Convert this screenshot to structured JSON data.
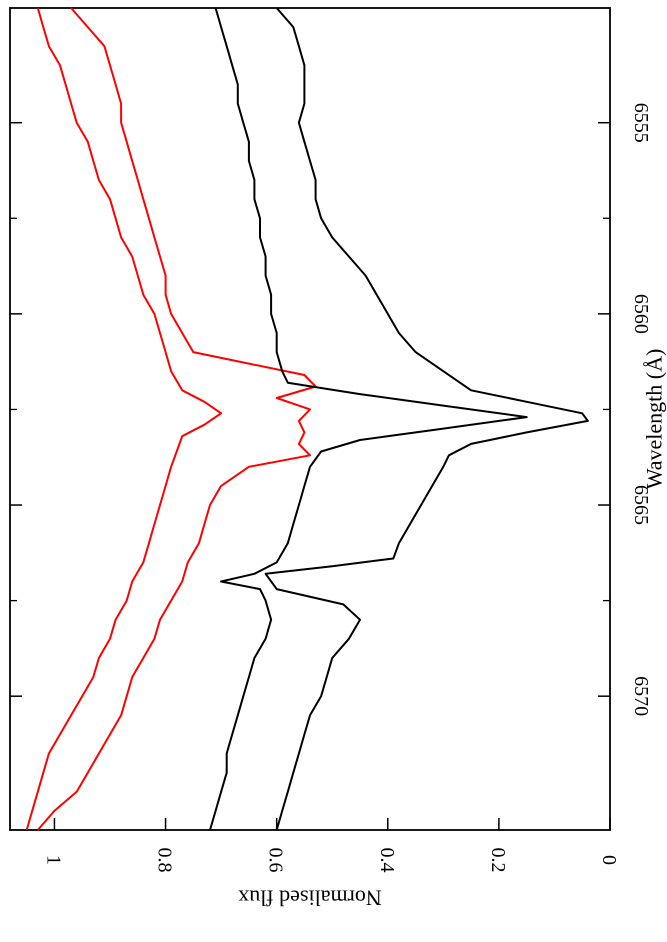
{
  "chart_data": {
    "type": "line",
    "orientation": "rotated-90-clockwise",
    "xlabel": "Wavelength (Å)",
    "ylabel": "Normalised flux",
    "xlim": [
      6552,
      6573.5
    ],
    "ylim": [
      0,
      1.08
    ],
    "xticks": [
      6555,
      6560,
      6565,
      6570
    ],
    "xminor": [
      6557.5,
      6562.5,
      6567.5
    ],
    "yticks": [
      0,
      0.2,
      0.4,
      0.6,
      0.8,
      1
    ],
    "ytick_labels": [
      "0",
      "0.2",
      "0.4",
      "0.6",
      "0.8",
      "1"
    ],
    "xtick_labels": [
      "6555",
      "6560",
      "6565",
      "6570"
    ],
    "grid": false,
    "series": [
      {
        "color": "#ff0000",
        "x": [
          6552.0,
          6552.5,
          6553.0,
          6553.5,
          6554.0,
          6554.5,
          6555.0,
          6555.5,
          6556.0,
          6556.5,
          6557.0,
          6557.5,
          6558.0,
          6558.5,
          6559.0,
          6559.5,
          6560.0,
          6560.5,
          6561.0,
          6561.5,
          6562.0,
          6562.3,
          6562.6,
          6562.9,
          6563.2,
          6563.6,
          6564.0,
          6564.5,
          6565.0,
          6565.5,
          6566.0,
          6566.5,
          6567.0,
          6567.5,
          6568.0,
          6568.5,
          6569.0,
          6569.5,
          6570.0,
          6570.5,
          6571.0,
          6571.5,
          6572.0,
          6572.5,
          6573.0,
          6573.5
        ],
        "y": [
          1.03,
          1.02,
          1.01,
          0.99,
          0.98,
          0.97,
          0.96,
          0.94,
          0.93,
          0.92,
          0.9,
          0.89,
          0.88,
          0.86,
          0.85,
          0.84,
          0.82,
          0.81,
          0.8,
          0.79,
          0.77,
          0.73,
          0.7,
          0.73,
          0.77,
          0.78,
          0.79,
          0.8,
          0.81,
          0.82,
          0.83,
          0.84,
          0.86,
          0.87,
          0.89,
          0.9,
          0.92,
          0.93,
          0.95,
          0.97,
          0.99,
          1.01,
          1.02,
          1.03,
          1.04,
          1.05
        ]
      },
      {
        "color": "#ff0000",
        "x": [
          6552.0,
          6552.5,
          6553.0,
          6553.5,
          6554.0,
          6554.5,
          6555.0,
          6555.5,
          6556.0,
          6556.5,
          6557.0,
          6557.5,
          6558.0,
          6558.5,
          6559.0,
          6559.5,
          6560.0,
          6560.5,
          6561.0,
          6561.3,
          6561.6,
          6561.9,
          6562.2,
          6562.5,
          6562.8,
          6563.1,
          6563.4,
          6563.7,
          6564.0,
          6564.5,
          6565.0,
          6565.5,
          6566.0,
          6566.5,
          6567.0,
          6567.5,
          6568.0,
          6568.5,
          6569.0,
          6569.5,
          6570.0,
          6570.5,
          6571.0,
          6571.5,
          6572.0,
          6572.5,
          6573.0,
          6573.5
        ],
        "y": [
          0.97,
          0.94,
          0.91,
          0.9,
          0.89,
          0.88,
          0.88,
          0.87,
          0.86,
          0.85,
          0.84,
          0.83,
          0.82,
          0.81,
          0.8,
          0.8,
          0.79,
          0.77,
          0.75,
          0.65,
          0.55,
          0.53,
          0.6,
          0.54,
          0.56,
          0.55,
          0.56,
          0.54,
          0.65,
          0.7,
          0.72,
          0.73,
          0.74,
          0.76,
          0.77,
          0.79,
          0.81,
          0.82,
          0.84,
          0.86,
          0.87,
          0.88,
          0.9,
          0.92,
          0.94,
          0.96,
          1.0,
          1.03
        ]
      },
      {
        "color": "#000000",
        "x": [
          6552.0,
          6552.5,
          6553.0,
          6553.5,
          6554.0,
          6554.5,
          6555.0,
          6555.5,
          6556.0,
          6556.5,
          6557.0,
          6557.5,
          6558.0,
          6558.5,
          6559.0,
          6559.5,
          6560.0,
          6560.5,
          6561.0,
          6561.5,
          6561.8,
          6562.1,
          6562.4,
          6562.7,
          6563.0,
          6563.3,
          6563.6,
          6564.0,
          6564.5,
          6565.0,
          6565.5,
          6566.0,
          6566.5,
          6566.8,
          6567.0,
          6567.2,
          6567.5,
          6568.0,
          6568.5,
          6569.0,
          6569.5,
          6570.0,
          6570.5,
          6571.0,
          6571.5,
          6572.0,
          6572.5,
          6573.0,
          6573.5
        ],
        "y": [
          0.71,
          0.7,
          0.69,
          0.68,
          0.67,
          0.67,
          0.66,
          0.65,
          0.65,
          0.64,
          0.64,
          0.63,
          0.63,
          0.62,
          0.62,
          0.61,
          0.61,
          0.6,
          0.6,
          0.59,
          0.58,
          0.45,
          0.3,
          0.15,
          0.3,
          0.45,
          0.52,
          0.54,
          0.55,
          0.56,
          0.57,
          0.58,
          0.6,
          0.64,
          0.7,
          0.63,
          0.62,
          0.61,
          0.62,
          0.64,
          0.65,
          0.66,
          0.67,
          0.68,
          0.69,
          0.69,
          0.7,
          0.71,
          0.72
        ]
      },
      {
        "color": "#000000",
        "x": [
          6552.0,
          6552.5,
          6553.0,
          6553.5,
          6554.0,
          6554.5,
          6555.0,
          6555.5,
          6556.0,
          6556.5,
          6557.0,
          6557.5,
          6558.0,
          6558.5,
          6559.0,
          6559.5,
          6560.0,
          6560.5,
          6561.0,
          6561.5,
          6562.0,
          6562.3,
          6562.6,
          6562.8,
          6563.1,
          6563.4,
          6563.7,
          6564.0,
          6564.5,
          6565.0,
          6565.5,
          6566.0,
          6566.4,
          6566.6,
          6566.8,
          6567.2,
          6567.6,
          6568.0,
          6568.5,
          6569.0,
          6569.5,
          6570.0,
          6570.5,
          6571.0,
          6571.5,
          6572.0,
          6572.5,
          6573.0,
          6573.5
        ],
        "y": [
          0.6,
          0.57,
          0.56,
          0.55,
          0.55,
          0.55,
          0.56,
          0.55,
          0.54,
          0.53,
          0.53,
          0.52,
          0.5,
          0.47,
          0.44,
          0.42,
          0.4,
          0.38,
          0.35,
          0.3,
          0.25,
          0.15,
          0.05,
          0.04,
          0.15,
          0.25,
          0.29,
          0.3,
          0.32,
          0.34,
          0.36,
          0.38,
          0.39,
          0.5,
          0.62,
          0.6,
          0.48,
          0.45,
          0.47,
          0.5,
          0.51,
          0.52,
          0.54,
          0.55,
          0.56,
          0.57,
          0.58,
          0.59,
          0.6
        ]
      }
    ]
  }
}
